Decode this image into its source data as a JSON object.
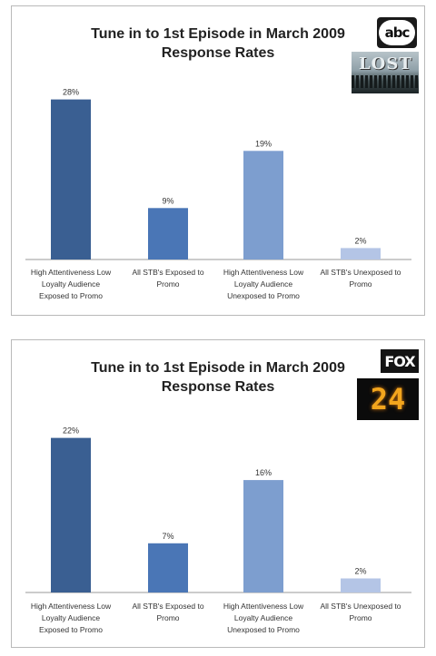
{
  "charts": [
    {
      "title_line1": "Tune in to 1st Episode in March 2009",
      "title_line2": "Response Rates",
      "network_logo": "ABC",
      "show_logo": "LOST",
      "logo_icons": [
        "abc-logo",
        "lost-logo"
      ]
    },
    {
      "title_line1": "Tune in to 1st Episode in March 2009",
      "title_line2": "Response Rates",
      "network_logo": "FOX",
      "show_logo": "24",
      "logo_icons": [
        "fox-logo",
        "24-logo"
      ]
    }
  ],
  "chart_data": [
    {
      "type": "bar",
      "title": "Tune in to 1st Episode in March 2009 Response Rates",
      "categories": [
        [
          "High Attentiveness Low",
          "Loyalty Audience",
          "Exposed to Promo"
        ],
        [
          "All STB's Exposed to",
          "Promo"
        ],
        [
          "High Attentiveness Low",
          "Loyalty Audience",
          "Unexposed to Promo"
        ],
        [
          "All STB's Unexposed to",
          "Promo"
        ]
      ],
      "values": [
        28,
        9,
        19,
        2
      ],
      "value_labels": [
        "28%",
        "9%",
        "19%",
        "2%"
      ],
      "bar_colors": [
        "#3a5f92",
        "#4a76b6",
        "#7d9ecf",
        "#b4c5e6"
      ],
      "ylim": [
        0,
        30
      ],
      "grid": false,
      "legend": "none"
    },
    {
      "type": "bar",
      "title": "Tune in to 1st Episode in March 2009 Response Rates",
      "categories": [
        [
          "High Attentiveness Low",
          "Loyalty Audience",
          "Exposed to Promo"
        ],
        [
          "All STB's Exposed to",
          "Promo"
        ],
        [
          "High Attentiveness Low",
          "Loyalty Audience",
          "Unexposed to Promo"
        ],
        [
          "All STB's Unexposed to",
          "Promo"
        ]
      ],
      "values": [
        22,
        7,
        16,
        2
      ],
      "value_labels": [
        "22%",
        "7%",
        "16%",
        "2%"
      ],
      "bar_colors": [
        "#3a5f92",
        "#4a76b6",
        "#7d9ecf",
        "#b4c5e6"
      ],
      "ylim": [
        0,
        23.5
      ],
      "grid": false,
      "legend": "none"
    }
  ]
}
